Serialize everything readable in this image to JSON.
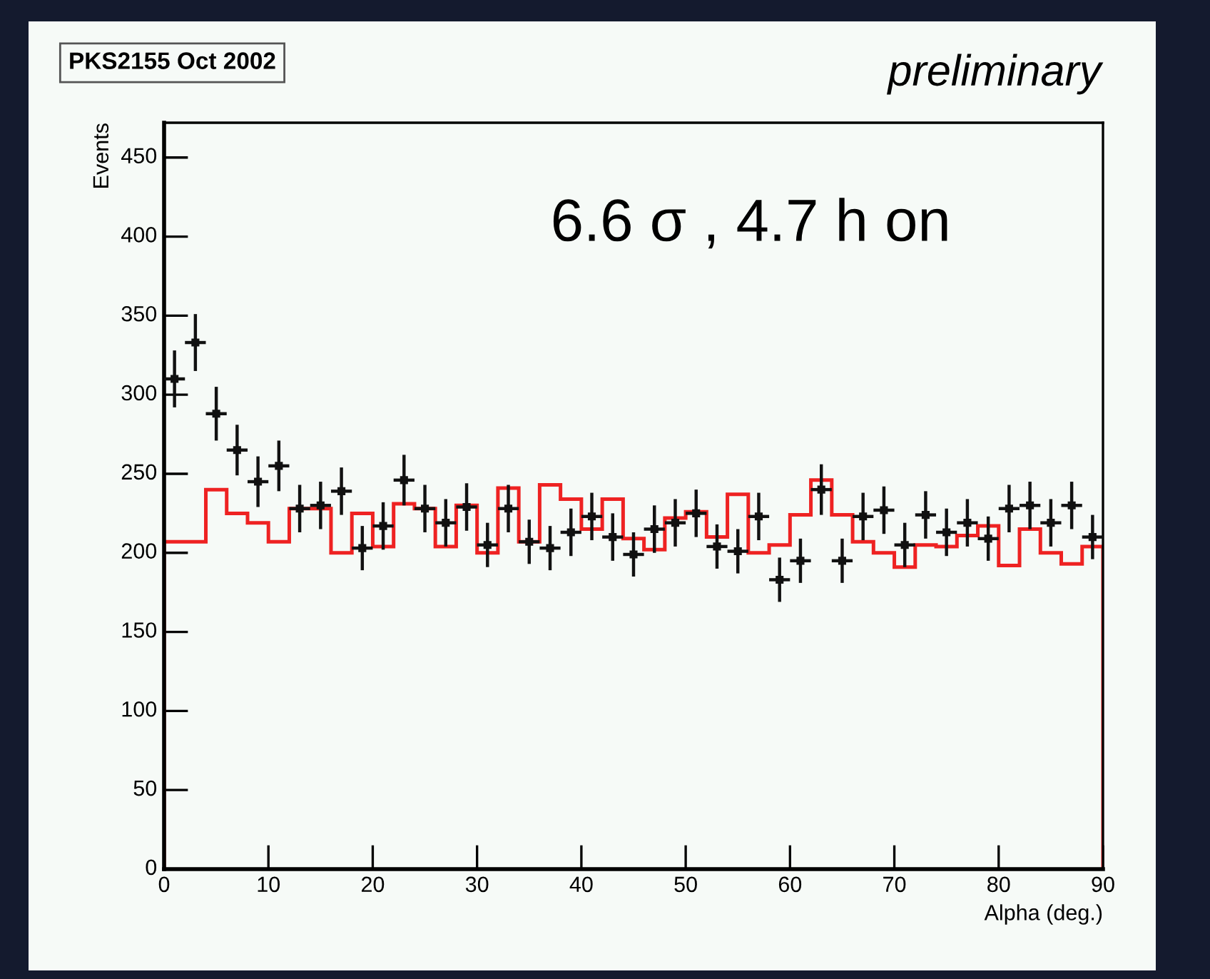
{
  "chart_data": {
    "type": "histogram",
    "title": "PKS2155 Oct 2002",
    "xlabel": "Alpha (deg.)",
    "ylabel": "Events",
    "annotations": [
      "preliminary",
      "6.6 σ , 4.7 h on"
    ],
    "xlim": [
      0,
      90
    ],
    "ylim": [
      0,
      472
    ],
    "xticks": [
      0,
      10,
      20,
      30,
      40,
      50,
      60,
      70,
      80,
      90
    ],
    "yticks": [
      0,
      50,
      100,
      150,
      200,
      250,
      300,
      350,
      400,
      450
    ],
    "grid": false,
    "legend": false,
    "series": [
      {
        "color": "#ee2222",
        "bins": [
          0,
          2,
          4,
          6,
          8,
          10,
          12,
          14,
          16,
          18,
          20,
          22,
          24,
          26,
          28,
          30,
          32,
          34,
          36,
          38,
          40,
          42,
          44,
          46,
          48,
          50,
          52,
          54,
          56,
          58,
          60,
          62,
          64,
          66,
          68,
          70,
          72,
          74,
          76,
          78,
          80,
          82,
          84,
          86,
          88,
          90
        ],
        "values": [
          207,
          207,
          240,
          225,
          219,
          207,
          228,
          228,
          200,
          225,
          204,
          231,
          228,
          204,
          230,
          200,
          241,
          207,
          243,
          234,
          215,
          234,
          209,
          202,
          222,
          226,
          210,
          237,
          200,
          205,
          224,
          246,
          224,
          207,
          200,
          191,
          205,
          204,
          211,
          217,
          192,
          215,
          200,
          193,
          204
        ]
      },
      {
        "type": "scatter",
        "color": "#111111",
        "marker": "square",
        "x": [
          1,
          3,
          5,
          7,
          9,
          11,
          13,
          15,
          17,
          19,
          21,
          23,
          25,
          27,
          29,
          31,
          33,
          35,
          37,
          39,
          41,
          43,
          45,
          47,
          49,
          51,
          53,
          55,
          57,
          59,
          61,
          63,
          65,
          67,
          69,
          71,
          73,
          75,
          77,
          79,
          81,
          83,
          85,
          87,
          89
        ],
        "values": [
          310,
          333,
          288,
          265,
          245,
          255,
          228,
          230,
          239,
          203,
          217,
          246,
          228,
          219,
          229,
          205,
          228,
          207,
          203,
          213,
          223,
          210,
          199,
          215,
          219,
          225,
          204,
          201,
          223,
          183,
          195,
          240,
          195,
          223,
          227,
          205,
          224,
          213,
          219,
          209,
          228,
          230,
          219,
          230,
          210
        ],
        "errors": [
          18,
          18,
          17,
          16,
          16,
          16,
          15,
          15,
          15,
          14,
          15,
          16,
          15,
          15,
          15,
          14,
          15,
          14,
          14,
          15,
          15,
          15,
          14,
          15,
          15,
          15,
          14,
          14,
          15,
          14,
          14,
          16,
          14,
          15,
          15,
          14,
          15,
          15,
          15,
          14,
          15,
          15,
          15,
          15,
          14
        ],
        "xerrors": [
          1,
          1,
          1,
          1,
          1,
          1,
          1,
          1,
          1,
          1,
          1,
          1,
          1,
          1,
          1,
          1,
          1,
          1,
          1,
          1,
          1,
          1,
          1,
          1,
          1,
          1,
          1,
          1,
          1,
          1,
          1,
          1,
          1,
          1,
          1,
          1,
          1,
          1,
          1,
          1,
          1,
          1,
          1,
          1,
          1
        ]
      }
    ]
  }
}
